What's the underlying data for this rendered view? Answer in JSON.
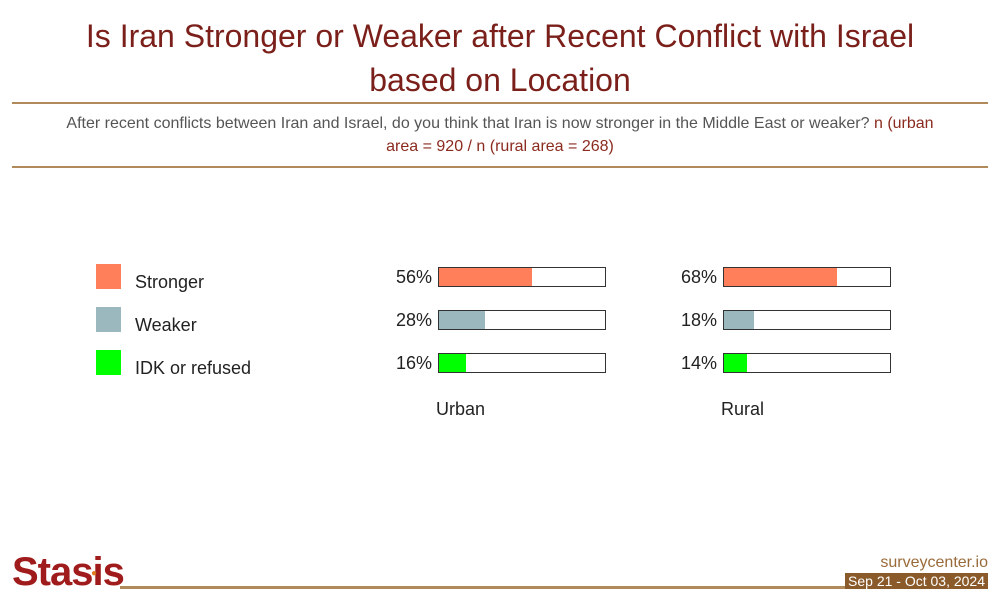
{
  "header": {
    "title": "Is Iran Stronger or Weaker after Recent Conflict with Israel based on Location",
    "question": "After recent conflicts between Iran and Israel, do you think that Iran is now stronger in the Middle East or weaker?",
    "sample": "n (urban area = 920 / n (rural area = 268)"
  },
  "chart_data": {
    "type": "bar",
    "title": "Is Iran Stronger or Weaker after Recent Conflict with Israel based on Location",
    "categories": [
      "Stronger",
      "Weaker",
      "IDK or refused"
    ],
    "colors": [
      "#ff7f5a",
      "#9ab8bd",
      "#00ff00"
    ],
    "unit": "%",
    "ylim": [
      0,
      100
    ],
    "groups": [
      {
        "name": "Urban",
        "values": [
          56,
          28,
          16
        ],
        "labels": [
          "56%",
          "28%",
          "16%"
        ]
      },
      {
        "name": "Rural",
        "values": [
          68,
          18,
          14
        ],
        "labels": [
          "68%",
          "18%",
          "14%"
        ]
      }
    ],
    "legend": "left"
  },
  "footer": {
    "logo": "Stasis",
    "site": "surveycenter.io",
    "date_range": "Sep 21 - Oct 03, 2024"
  }
}
